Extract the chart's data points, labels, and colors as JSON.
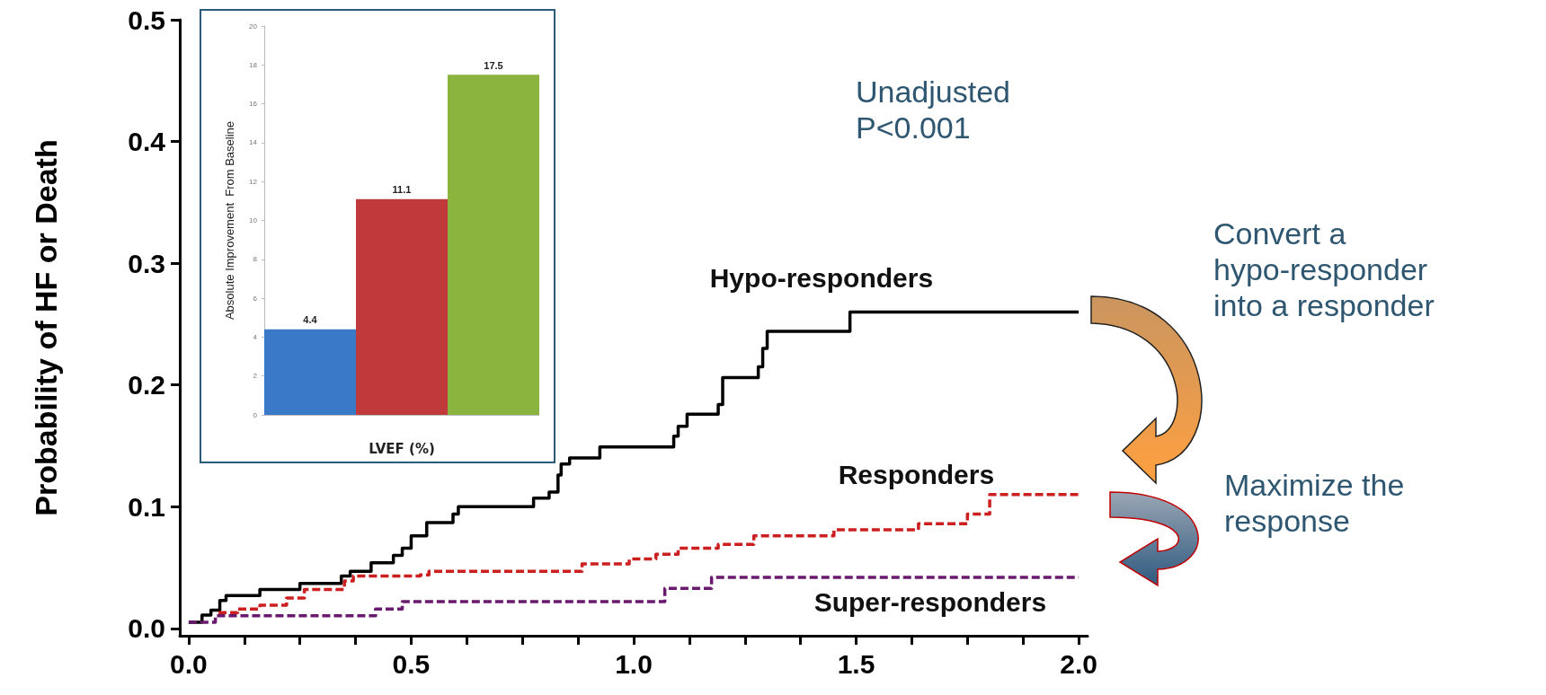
{
  "chart_data": [
    {
      "type": "step",
      "ylabel": "Probability of HF or Death",
      "xlim": [
        -0.02,
        2.02
      ],
      "ylim": [
        -0.006,
        0.5
      ],
      "xticks": [
        {
          "value": 0,
          "label": "0.0"
        },
        {
          "value": 0.125,
          "label": null
        },
        {
          "value": 0.25,
          "label": null
        },
        {
          "value": 0.375,
          "label": null
        },
        0.5,
        {
          "value": 0.625,
          "label": null
        },
        {
          "value": 0.75,
          "label": null
        },
        {
          "value": 0.875,
          "label": null
        },
        {
          "value": 1,
          "label": "1.0"
        },
        {
          "value": 1.125,
          "label": null
        },
        {
          "value": 1.25,
          "label": null
        },
        {
          "value": 1.375,
          "label": null
        },
        1.5,
        {
          "value": 1.625,
          "label": null
        },
        {
          "value": 1.75,
          "label": null
        },
        {
          "value": 1.875,
          "label": null
        },
        {
          "value": 2,
          "label": "2.0"
        }
      ],
      "yticks": [
        {
          "value": 0,
          "label": "0.0"
        },
        0.1,
        0.2,
        0.3,
        0.4,
        0.5
      ],
      "grid": false,
      "legend": false,
      "marker": "none",
      "series": [
        {
          "name": "Hypo-responders",
          "color": "#000000",
          "line_style": "solid",
          "x": [
            0,
            0.03,
            0.05,
            0.07,
            0.084,
            0.16,
            0.25,
            0.343,
            0.363,
            0.41,
            0.46,
            0.48,
            0.5,
            0.535,
            0.594,
            0.606,
            0.775,
            0.81,
            0.83,
            0.837,
            0.856,
            0.924,
            1.09,
            1.1,
            1.12,
            1.19,
            1.2,
            1.28,
            1.29,
            1.3,
            1.486,
            2.0
          ],
          "values": [
            0.005,
            0.011,
            0.015,
            0.023,
            0.027,
            0.032,
            0.037,
            0.043,
            0.047,
            0.054,
            0.06,
            0.066,
            0.076,
            0.087,
            0.094,
            0.1,
            0.107,
            0.112,
            0.126,
            0.135,
            0.14,
            0.149,
            0.158,
            0.166,
            0.176,
            0.184,
            0.206,
            0.215,
            0.23,
            0.244,
            0.26,
            0.26
          ]
        },
        {
          "name": "Responders",
          "color": "#cc1f1f",
          "line_style": "dashed",
          "x": [
            0.067,
            0.11,
            0.16,
            0.22,
            0.26,
            0.35,
            0.37,
            0.52,
            0.54,
            0.884,
            0.99,
            1.05,
            1.1,
            1.19,
            1.27,
            1.45,
            1.64,
            1.75,
            1.8,
            2.0
          ],
          "values": [
            0.013,
            0.016,
            0.019,
            0.025,
            0.032,
            0.039,
            0.043,
            0.044,
            0.047,
            0.053,
            0.057,
            0.061,
            0.066,
            0.069,
            0.076,
            0.081,
            0.086,
            0.094,
            0.11,
            0.11
          ]
        },
        {
          "name": "Super-responders",
          "color": "#6a1a6e",
          "line_style": "dashed",
          "x": [
            0,
            0.06,
            0.42,
            0.48,
            1.07,
            1.175,
            2.0
          ],
          "values": [
            0.005,
            0.0105,
            0.016,
            0.022,
            0.033,
            0.042,
            0.042
          ]
        }
      ],
      "annotations": [
        "Unadjusted P<0.001",
        "Convert a hypo-responder into a responder",
        "Maximize the response"
      ]
    },
    {
      "type": "bar",
      "xlabel": "LVEF (%)",
      "ylabel": "Absolute Improvement  From Baseline",
      "categories": [
        null,
        null,
        null
      ],
      "values": [
        4.4,
        11.1,
        17.5
      ],
      "colors": [
        "#3a78c8",
        "#c0393b",
        "#8ab43e"
      ],
      "ylim": [
        0,
        20
      ],
      "yticks": [
        0,
        2,
        4,
        6,
        8,
        10,
        12,
        14,
        16,
        18,
        20
      ],
      "data_labels": true
    }
  ]
}
